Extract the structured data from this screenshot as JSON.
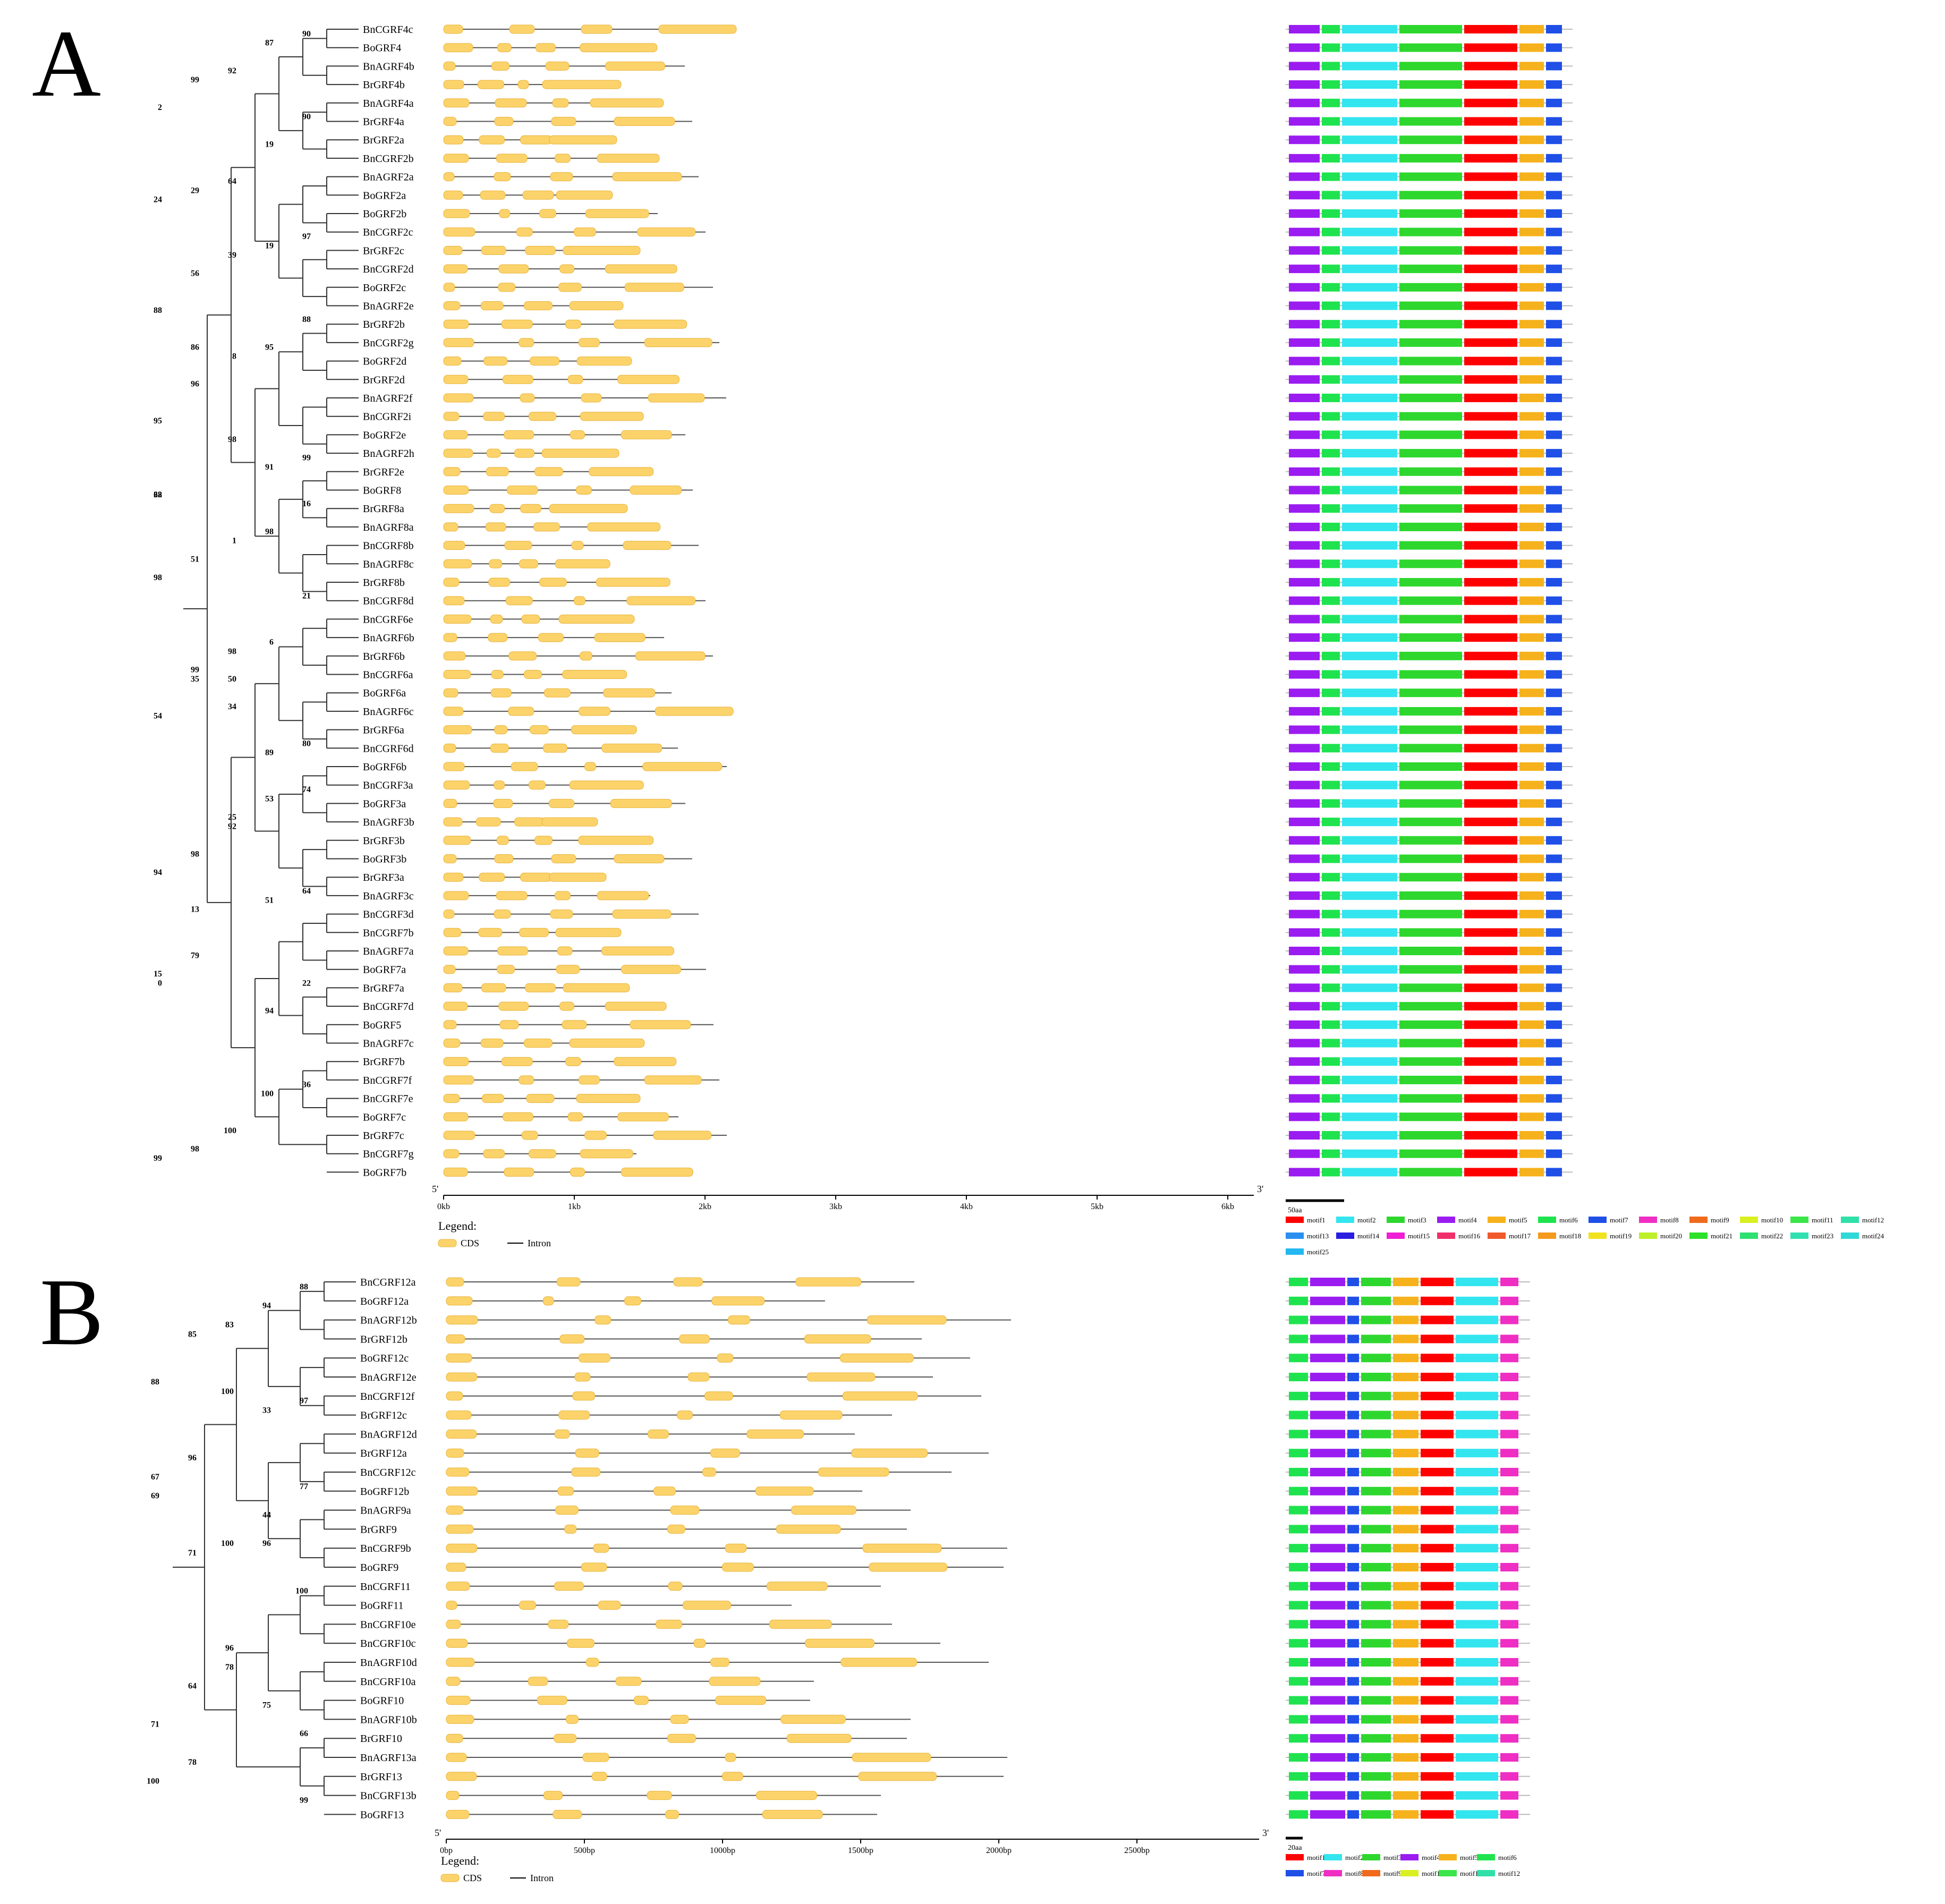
{
  "panelA": {
    "letter": "A",
    "genes": [
      "BnCGRF4c",
      "BoGRF4",
      "BnAGRF4b",
      "BrGRF4b",
      "BnAGRF4a",
      "BrGRF4a",
      "BrGRF2a",
      "BnCGRF2b",
      "BnAGRF2a",
      "BoGRF2a",
      "BoGRF2b",
      "BnCGRF2c",
      "BrGRF2c",
      "BnCGRF2d",
      "BoGRF2c",
      "BnAGRF2e",
      "BrGRF2b",
      "BnCGRF2g",
      "BoGRF2d",
      "BrGRF2d",
      "BnAGRF2f",
      "BnCGRF2i",
      "BoGRF2e",
      "BnAGRF2h",
      "BrGRF2e",
      "BoGRF8",
      "BrGRF8a",
      "BnAGRF8a",
      "BnCGRF8b",
      "BnAGRF8c",
      "BrGRF8b",
      "BnCGRF8d",
      "BnCGRF6e",
      "BnAGRF6b",
      "BrGRF6b",
      "BnCGRF6a",
      "BoGRF6a",
      "BnAGRF6c",
      "BrGRF6a",
      "BnCGRF6d",
      "BoGRF6b",
      "BnCGRF3a",
      "BoGRF3a",
      "BnAGRF3b",
      "BrGRF3b",
      "BoGRF3b",
      "BrGRF3a",
      "BnAGRF3c",
      "BnCGRF3d",
      "BnCGRF7b",
      "BnAGRF7a",
      "BoGRF7a",
      "BrGRF7a",
      "BnCGRF7d",
      "BoGRF5",
      "BnAGRF7c",
      "BrGRF7b",
      "BnCGRF7f",
      "BnCGRF7e",
      "BoGRF7c",
      "BrGRF7c",
      "BnCGRF7g",
      "BoGRF7b"
    ],
    "bootstraps": [
      {
        "label": "90",
        "row": 0.5
      },
      {
        "label": "87",
        "row": 1
      },
      {
        "label": "92",
        "row": 2.5
      },
      {
        "label": "99",
        "row": 3
      },
      {
        "label": "2",
        "row": 4.5
      },
      {
        "label": "90",
        "row": 5
      },
      {
        "label": "19",
        "row": 6.5
      },
      {
        "label": "64",
        "row": 8.5
      },
      {
        "label": "29",
        "row": 9
      },
      {
        "label": "24",
        "row": 9.5
      },
      {
        "label": "97",
        "row": 11.5
      },
      {
        "label": "19",
        "row": 12
      },
      {
        "label": "39",
        "row": 12.5
      },
      {
        "label": "56",
        "row": 13.5
      },
      {
        "label": "88",
        "row": 15.5
      },
      {
        "label": "88",
        "row": 16
      },
      {
        "label": "95",
        "row": 17.5
      },
      {
        "label": "8",
        "row": 18
      },
      {
        "label": "96",
        "row": 19.5
      },
      {
        "label": "95",
        "row": 21.5
      },
      {
        "label": "99",
        "row": 23.5
      },
      {
        "label": "91",
        "row": 24
      },
      {
        "label": "98",
        "row": 22.5
      },
      {
        "label": "86",
        "row": 17.5
      },
      {
        "label": "22",
        "row": 25.5
      },
      {
        "label": "16",
        "row": 26
      },
      {
        "label": "98",
        "row": 27.5
      },
      {
        "label": "1",
        "row": 28
      },
      {
        "label": "51",
        "row": 29
      },
      {
        "label": "98",
        "row": 30
      },
      {
        "label": "21",
        "row": 31
      },
      {
        "label": "6",
        "row": 33.5
      },
      {
        "label": "98",
        "row": 34
      },
      {
        "label": "35",
        "row": 35.5
      },
      {
        "label": "54",
        "row": 37.5
      },
      {
        "label": "80",
        "row": 39
      },
      {
        "label": "89",
        "row": 39.5
      },
      {
        "label": "34",
        "row": 37
      },
      {
        "label": "99",
        "row": 35
      },
      {
        "label": "68",
        "row": 25.5
      },
      {
        "label": "74",
        "row": 41.5
      },
      {
        "label": "53",
        "row": 42
      },
      {
        "label": "92",
        "row": 43.5
      },
      {
        "label": "98",
        "row": 45
      },
      {
        "label": "94",
        "row": 46
      },
      {
        "label": "64",
        "row": 47
      },
      {
        "label": "51",
        "row": 47.5
      },
      {
        "label": "50",
        "row": 35.5
      },
      {
        "label": "79",
        "row": 50.5
      },
      {
        "label": "15",
        "row": 51.5
      },
      {
        "label": "22",
        "row": 52
      },
      {
        "label": "94",
        "row": 53.5
      },
      {
        "label": "25",
        "row": 43
      },
      {
        "label": "13",
        "row": 48
      },
      {
        "label": "0",
        "row": 52
      },
      {
        "label": "36",
        "row": 57.5
      },
      {
        "label": "100",
        "row": 58
      },
      {
        "label": "100",
        "row": 60
      },
      {
        "label": "98",
        "row": 61
      },
      {
        "label": "99",
        "row": 61.5
      }
    ],
    "axis": {
      "five": "5'",
      "three": "3'",
      "ticks": [
        "0kb",
        "1kb",
        "2kb",
        "3kb",
        "4kb",
        "5kb",
        "6kb"
      ]
    },
    "legend": {
      "title": "Legend:",
      "cds": "CDS",
      "intron": "Intron"
    },
    "scale": "50aa",
    "motifs": [
      {
        "name": "motif1",
        "color": "#ff0000"
      },
      {
        "name": "motif2",
        "color": "#33e5ef"
      },
      {
        "name": "motif3",
        "color": "#2ed72e"
      },
      {
        "name": "motif4",
        "color": "#9b1cf0"
      },
      {
        "name": "motif5",
        "color": "#f6b21c"
      },
      {
        "name": "motif6",
        "color": "#1fe34e"
      },
      {
        "name": "motif7",
        "color": "#1f4fe6"
      },
      {
        "name": "motif8",
        "color": "#ef2ec4"
      },
      {
        "name": "motif9",
        "color": "#f06a1c"
      },
      {
        "name": "motif10",
        "color": "#d9ef22"
      },
      {
        "name": "motif11",
        "color": "#3be54a"
      },
      {
        "name": "motif12",
        "color": "#30e0a8"
      },
      {
        "name": "motif13",
        "color": "#2a8ff0"
      },
      {
        "name": "motif14",
        "color": "#2a1ee0"
      },
      {
        "name": "motif15",
        "color": "#f01ed5"
      },
      {
        "name": "motif16",
        "color": "#f0306a"
      },
      {
        "name": "motif17",
        "color": "#f05a2a"
      },
      {
        "name": "motif18",
        "color": "#f49a1e"
      },
      {
        "name": "motif19",
        "color": "#f0e21e"
      },
      {
        "name": "motif20",
        "color": "#bdf02a"
      },
      {
        "name": "motif21",
        "color": "#2de02a"
      },
      {
        "name": "motif22",
        "color": "#30e070"
      },
      {
        "name": "motif23",
        "color": "#30e0b0"
      },
      {
        "name": "motif24",
        "color": "#30d8d8"
      },
      {
        "name": "motif25",
        "color": "#24b8f0"
      }
    ]
  },
  "panelB": {
    "letter": "B",
    "genes": [
      "BnCGRF12a",
      "BoGRF12a",
      "BnAGRF12b",
      "BrGRF12b",
      "BoGRF12c",
      "BnAGRF12e",
      "BnCGRF12f",
      "BrGRF12c",
      "BnAGRF12d",
      "BrGRF12a",
      "BnCGRF12c",
      "BoGRF12b",
      "BnAGRF9a",
      "BrGRF9",
      "BnCGRF9b",
      "BoGRF9",
      "BnCGRF11",
      "BoGRF11",
      "BnCGRF10e",
      "BnCGRF10c",
      "BnAGRF10d",
      "BnCGRF10a",
      "BoGRF10",
      "BnAGRF10b",
      "BrGRF10",
      "BnAGRF13a",
      "BrGRF13",
      "BnCGRF13b",
      "BoGRF13"
    ],
    "bootstraps": [
      {
        "label": "88",
        "row": 0.5
      },
      {
        "label": "94",
        "row": 1.5
      },
      {
        "label": "83",
        "row": 2.5
      },
      {
        "label": "85",
        "row": 3
      },
      {
        "label": "88",
        "row": 5.5
      },
      {
        "label": "97",
        "row": 6.5
      },
      {
        "label": "33",
        "row": 7
      },
      {
        "label": "100",
        "row": 6
      },
      {
        "label": "96",
        "row": 9.5
      },
      {
        "label": "67",
        "row": 10.5
      },
      {
        "label": "77",
        "row": 11
      },
      {
        "label": "44",
        "row": 12.5
      },
      {
        "label": "100",
        "row": 14
      },
      {
        "label": "71",
        "row": 14.5
      },
      {
        "label": "69",
        "row": 11.5
      },
      {
        "label": "100",
        "row": 16.5
      },
      {
        "label": "96",
        "row": 14
      },
      {
        "label": "96",
        "row": 19.5
      },
      {
        "label": "64",
        "row": 21.5
      },
      {
        "label": "71",
        "row": 23.5
      },
      {
        "label": "66",
        "row": 24
      },
      {
        "label": "75",
        "row": 22.5
      },
      {
        "label": "78",
        "row": 20.5
      },
      {
        "label": "78",
        "row": 25.5
      },
      {
        "label": "100",
        "row": 26.5
      },
      {
        "label": "99",
        "row": 27.5
      }
    ],
    "axis": {
      "five": "5'",
      "three": "3'",
      "ticks": [
        "0bp",
        "500bp",
        "1000bp",
        "1500bp",
        "2000bp",
        "2500bp"
      ]
    },
    "legend": {
      "title": "Legend:",
      "cds": "CDS",
      "intron": "Intron"
    },
    "scale": "20aa",
    "motifs": [
      {
        "name": "motif1",
        "color": "#ff0000"
      },
      {
        "name": "motif2",
        "color": "#33e5ef"
      },
      {
        "name": "motif3",
        "color": "#2ed72e"
      },
      {
        "name": "motif4",
        "color": "#9b1cf0"
      },
      {
        "name": "motif5",
        "color": "#f6b21c"
      },
      {
        "name": "motif6",
        "color": "#1fe34e"
      },
      {
        "name": "motif7",
        "color": "#1f4fe6"
      },
      {
        "name": "motif8",
        "color": "#ef2ec4"
      },
      {
        "name": "motif9",
        "color": "#f06a1c"
      },
      {
        "name": "motif10",
        "color": "#d9ef22"
      },
      {
        "name": "motif11",
        "color": "#3be54a"
      },
      {
        "name": "motif12",
        "color": "#30e0a8"
      }
    ]
  },
  "colors": {
    "cds": "#fcd36b",
    "cdsStroke": "#e8b43a",
    "intron": "#555555",
    "tree": "#333333"
  }
}
